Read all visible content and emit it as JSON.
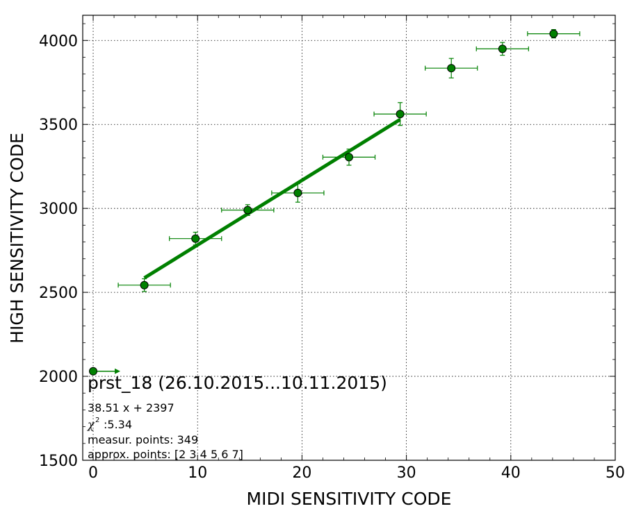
{
  "chart_data": {
    "type": "scatter",
    "title": "prst_18 (26.10.2015...10.11.2015)",
    "xlabel": "MIDI SENSITIVITY CODE",
    "ylabel": "HIGH SENSITIVITY CODE",
    "xlim": [
      -1,
      50
    ],
    "ylim": [
      1500,
      4150
    ],
    "xticks": [
      "0",
      "10",
      "20",
      "30",
      "40",
      "50"
    ],
    "yticks": [
      "1500",
      "2000",
      "2500",
      "3000",
      "3500",
      "4000"
    ],
    "grid": true,
    "colors": {
      "series": "#008000",
      "marker": "#008000",
      "axis": "#000000",
      "grid": "#000000"
    },
    "series": [
      {
        "kind": "points_with_errorbars",
        "points": [
          {
            "x": 4.9,
            "y": 2543,
            "xerr": 2.5,
            "yerr": 38
          },
          {
            "x": 9.8,
            "y": 2820,
            "xerr": 2.5,
            "yerr": 38
          },
          {
            "x": 14.8,
            "y": 2990,
            "xerr": 2.5,
            "yerr": 32
          },
          {
            "x": 19.6,
            "y": 3092,
            "xerr": 2.5,
            "yerr": 55
          },
          {
            "x": 24.5,
            "y": 3305,
            "xerr": 2.5,
            "yerr": 48
          },
          {
            "x": 29.4,
            "y": 3562,
            "xerr": 2.5,
            "yerr": 68
          },
          {
            "x": 34.3,
            "y": 3835,
            "xerr": 2.5,
            "yerr": 58
          },
          {
            "x": 39.2,
            "y": 3950,
            "xerr": 2.5,
            "yerr": 38
          },
          {
            "x": 44.1,
            "y": 4040,
            "xerr": 2.5,
            "yerr": 25
          }
        ]
      },
      {
        "kind": "fit_line",
        "x": [
          4.9,
          29.4
        ],
        "y": [
          2585.7,
          3529.2
        ]
      },
      {
        "kind": "arrow_point",
        "x": 0,
        "y": 2030,
        "yerr": 20,
        "arrow_to_x": 2.6
      }
    ],
    "annotations": [
      "38.51 x + 2397",
      ":5.34",
      "measur. points: 349",
      "approx. points: [2 3 4 5 6 7]"
    ],
    "chi_symbol": "χ",
    "chi_superscript": "2"
  }
}
